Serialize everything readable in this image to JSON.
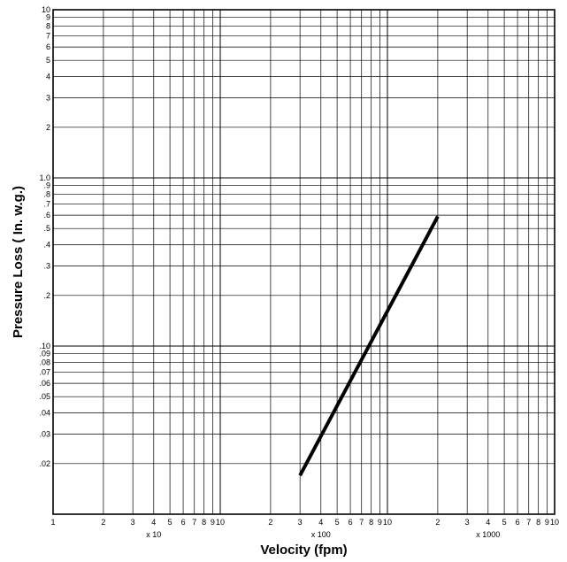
{
  "chart_data": {
    "type": "line",
    "title": "",
    "xlabel": "Velocity (fpm)",
    "ylabel": "Pressure Loss ( In. w.g.)",
    "xscale": "log",
    "yscale": "log",
    "xlim": [
      10,
      10000
    ],
    "ylim": [
      0.01,
      10
    ],
    "grid": true,
    "legend": "none",
    "series": [
      {
        "x": [
          300,
          2000
        ],
        "y": [
          0.017,
          0.59
        ],
        "color": "#000000"
      }
    ],
    "x_ticks": [
      {
        "v": 10,
        "label": "1"
      },
      {
        "v": 20,
        "label": "2"
      },
      {
        "v": 30,
        "label": "3"
      },
      {
        "v": 40,
        "label": "4"
      },
      {
        "v": 50,
        "label": "5"
      },
      {
        "v": 60,
        "label": "6"
      },
      {
        "v": 70,
        "label": "7"
      },
      {
        "v": 80,
        "label": "8"
      },
      {
        "v": 90,
        "label": "9"
      },
      {
        "v": 100,
        "label": "10"
      },
      {
        "v": 200,
        "label": "2"
      },
      {
        "v": 300,
        "label": "3"
      },
      {
        "v": 400,
        "label": "4"
      },
      {
        "v": 500,
        "label": "5"
      },
      {
        "v": 600,
        "label": "6"
      },
      {
        "v": 700,
        "label": "7"
      },
      {
        "v": 800,
        "label": "8"
      },
      {
        "v": 900,
        "label": "9"
      },
      {
        "v": 1000,
        "label": "10"
      },
      {
        "v": 2000,
        "label": "2"
      },
      {
        "v": 3000,
        "label": "3"
      },
      {
        "v": 4000,
        "label": "4"
      },
      {
        "v": 5000,
        "label": "5"
      },
      {
        "v": 6000,
        "label": "6"
      },
      {
        "v": 7000,
        "label": "7"
      },
      {
        "v": 8000,
        "label": "8"
      },
      {
        "v": 9000,
        "label": "9"
      },
      {
        "v": 10000,
        "label": "10"
      }
    ],
    "x_multipliers": [
      {
        "v": 40,
        "label": "x 10"
      },
      {
        "v": 400,
        "label": "x 100"
      },
      {
        "v": 4000,
        "label": "x 1000"
      }
    ],
    "y_ticks": [
      {
        "v": 0.02,
        "label": ".02"
      },
      {
        "v": 0.03,
        "label": ".03"
      },
      {
        "v": 0.04,
        "label": ".04"
      },
      {
        "v": 0.05,
        "label": ".05"
      },
      {
        "v": 0.06,
        "label": ".06"
      },
      {
        "v": 0.07,
        "label": ".07"
      },
      {
        "v": 0.08,
        "label": ".08"
      },
      {
        "v": 0.09,
        "label": ".09"
      },
      {
        "v": 0.1,
        "label": ".10"
      },
      {
        "v": 0.2,
        "label": ".2"
      },
      {
        "v": 0.3,
        "label": ".3"
      },
      {
        "v": 0.4,
        "label": ".4"
      },
      {
        "v": 0.5,
        "label": ".5"
      },
      {
        "v": 0.6,
        "label": ".6"
      },
      {
        "v": 0.7,
        "label": ".7"
      },
      {
        "v": 0.8,
        "label": ".8"
      },
      {
        "v": 0.9,
        "label": ".9"
      },
      {
        "v": 1,
        "label": "1.0"
      },
      {
        "v": 2,
        "label": "2"
      },
      {
        "v": 3,
        "label": "3"
      },
      {
        "v": 4,
        "label": "4"
      },
      {
        "v": 5,
        "label": "5"
      },
      {
        "v": 6,
        "label": "6"
      },
      {
        "v": 7,
        "label": "7"
      },
      {
        "v": 8,
        "label": "8"
      },
      {
        "v": 9,
        "label": "9"
      },
      {
        "v": 10,
        "label": "10"
      }
    ]
  }
}
